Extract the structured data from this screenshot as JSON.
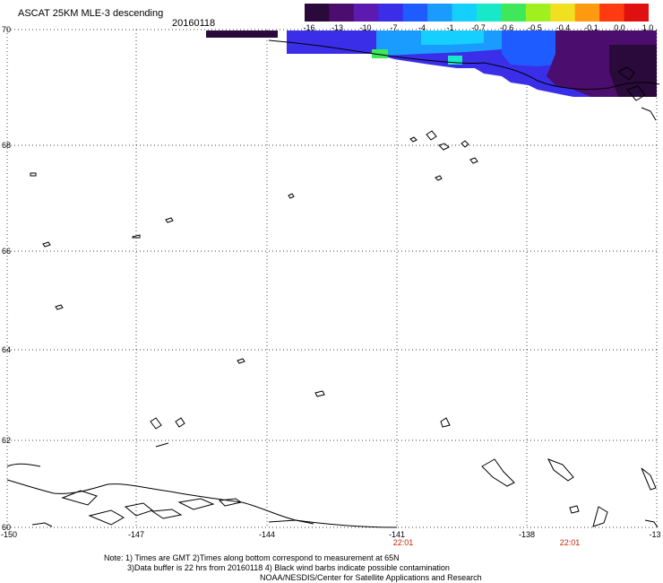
{
  "header": {
    "title": "ASCAT 25KM MLE-3 descending",
    "date": "20160118"
  },
  "color_scale": {
    "labels": [
      "-16",
      "-13",
      "-10",
      "-7",
      "-4",
      "-1",
      "-0.7",
      "-0.6",
      "-0.5",
      "-0.4",
      "-0.1",
      "0.0",
      "1.0"
    ],
    "colors": [
      "#2a0a3a",
      "#4b0e6e",
      "#5c1ab0",
      "#3a2ee8",
      "#1f5cff",
      "#1a9cff",
      "#15d0ff",
      "#19e8c8",
      "#3ee85a",
      "#a0f020",
      "#f0e020",
      "#ff9a10",
      "#ff3a10",
      "#e01010"
    ]
  },
  "axes": {
    "lat_labels": [
      "70",
      "68",
      "66",
      "64",
      "62",
      "60"
    ],
    "lon_labels": [
      "-150",
      "-147",
      "-144",
      "-141",
      "-138",
      "-13"
    ],
    "time_labels": [
      "22:01",
      "22:01"
    ]
  },
  "notes": {
    "line1": "Note: 1) Times are GMT 2)Times along bottom correspond to measurement at 65N",
    "line2": "3)Data buffer is 22 hrs from 20160118 4) Black wind barbs indicate possible contamination",
    "line3": "NOAA/NESDIS/Center for Satellite Applications and Research"
  }
}
